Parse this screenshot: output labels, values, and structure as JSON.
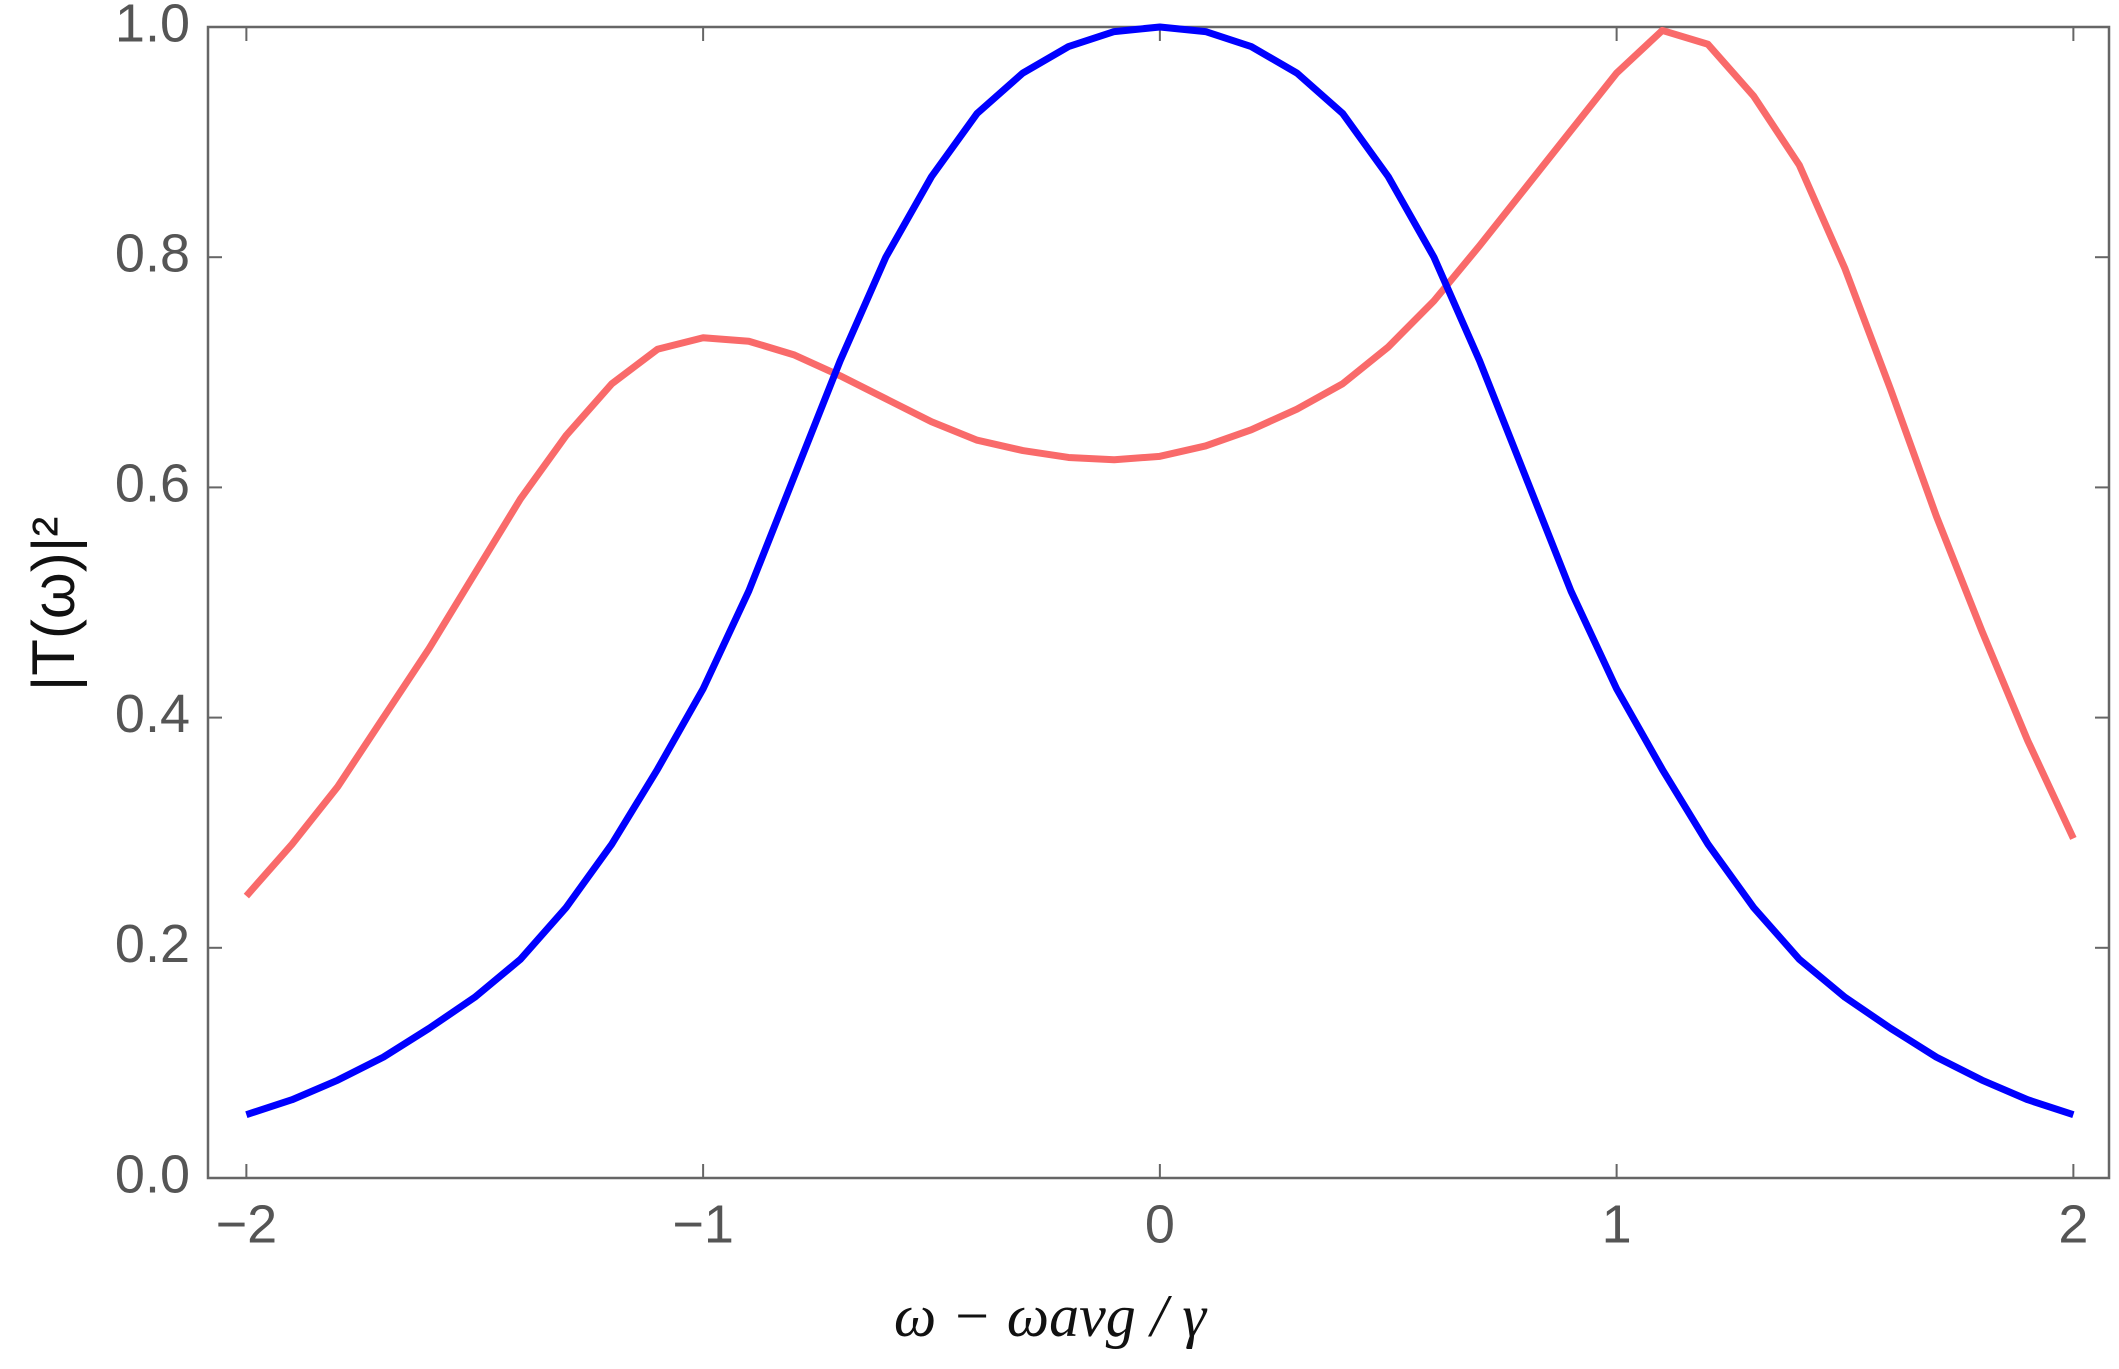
{
  "chart_data": {
    "type": "line",
    "x_label": "ω − ωavg / γ",
    "y_label": "|T(ω)|²",
    "x": [
      -2,
      -1.9,
      -1.8,
      -1.7,
      -1.6,
      -1.5,
      -1.4,
      -1.3,
      -1.2,
      -1.1,
      -1,
      -0.9,
      -0.8,
      -0.7,
      -0.6,
      -0.5,
      -0.4,
      -0.3,
      -0.2,
      -0.1,
      0,
      0.1,
      0.2,
      0.3,
      0.4,
      0.5,
      0.6,
      0.7,
      0.8,
      0.9,
      1,
      1.1,
      1.2,
      1.3,
      1.4,
      1.5,
      1.6,
      1.7,
      1.8,
      1.9,
      2
    ],
    "series": [
      {
        "color": "#f96a6a",
        "values": [
          0.245,
          0.29,
          0.34,
          0.4,
          0.46,
          0.525,
          0.59,
          0.645,
          0.69,
          0.72,
          0.73,
          0.727,
          0.715,
          0.697,
          0.677,
          0.657,
          0.641,
          0.632,
          0.626,
          0.624,
          0.627,
          0.636,
          0.65,
          0.668,
          0.69,
          0.722,
          0.762,
          0.81,
          0.86,
          0.91,
          0.96,
          0.997,
          0.985,
          0.94,
          0.88,
          0.79,
          0.685,
          0.575,
          0.475,
          0.38,
          0.295
        ]
      },
      {
        "color": "#0000ff",
        "values": [
          0.055,
          0.068,
          0.085,
          0.105,
          0.13,
          0.157,
          0.19,
          0.235,
          0.29,
          0.355,
          0.425,
          0.51,
          0.61,
          0.71,
          0.8,
          0.87,
          0.925,
          0.96,
          0.983,
          0.996,
          1.0,
          0.996,
          0.983,
          0.96,
          0.925,
          0.87,
          0.8,
          0.71,
          0.61,
          0.51,
          0.425,
          0.355,
          0.29,
          0.235,
          0.19,
          0.157,
          0.13,
          0.105,
          0.085,
          0.068,
          0.055
        ]
      }
    ],
    "xlim": [
      -2.084,
      2.078
    ],
    "ylim": [
      0,
      1
    ],
    "xticks": [
      {
        "value": -2,
        "label": "−2"
      },
      {
        "value": -1,
        "label": "−1"
      },
      0,
      1,
      2
    ],
    "yticks": [
      {
        "value": 0,
        "label": "0.0"
      },
      0.2,
      0.4,
      0.6,
      0.8,
      {
        "value": 1,
        "label": "1.0"
      }
    ]
  }
}
